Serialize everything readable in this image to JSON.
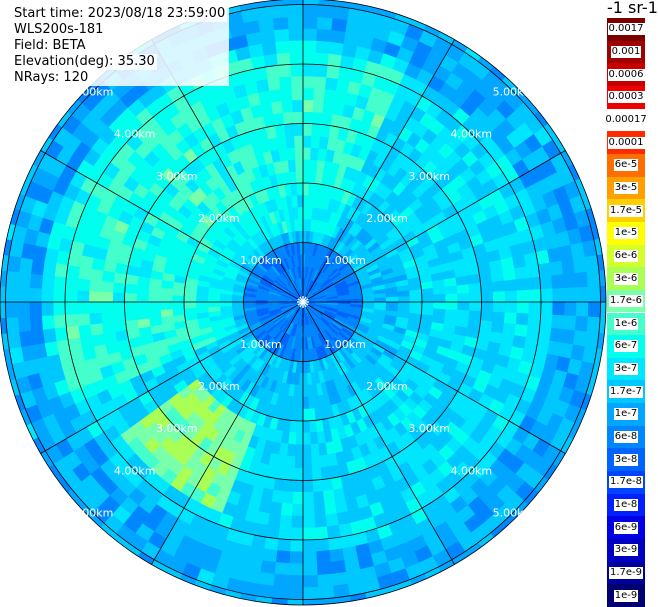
{
  "header": {
    "start_time": "Start time: 2023/08/18 23:59:00",
    "instrument": "WLS200s-181",
    "field": "Field: BETA",
    "elevation": "Elevation(deg): 35.30",
    "nrays": "NRays: 120"
  },
  "colorbar": {
    "unit_title": "-1 sr-1",
    "labels": [
      "0.0017",
      "0.001",
      "0.0006",
      "0.0003",
      "0.00017",
      "0.0001",
      "6e-5",
      "3e-5",
      "1.7e-5",
      "1e-5",
      "6e-6",
      "3e-6",
      "1.7e-6",
      "1e-6",
      "6e-7",
      "3e-7",
      "1.7e-7",
      "1e-7",
      "6e-8",
      "3e-8",
      "1.7e-8",
      "1e-8",
      "6e-9",
      "3e-9",
      "1.7e-9",
      "1e-9"
    ],
    "colors": [
      "#7a0000",
      "#a00000",
      "#c80000",
      "#ee0000",
      "#ffffff",
      "#ff2a00",
      "#ff6e00",
      "#ffa000",
      "#ffd000",
      "#ffff00",
      "#d4ff2a",
      "#aaff55",
      "#7affaa",
      "#44ffcc",
      "#00ffee",
      "#00e6ff",
      "#00c8ff",
      "#00a6ff",
      "#0086ff",
      "#0064ff",
      "#0044ff",
      "#0020ff",
      "#0000e6",
      "#0000c0",
      "#00009a",
      "#000070"
    ]
  },
  "chart_data": {
    "type": "heatmap",
    "projection": "polar PPI",
    "range_rings_km": [
      1,
      2,
      3,
      4,
      5
    ],
    "ring_labels": [
      "1.00km",
      "2.00km",
      "3.00km",
      "4.00km",
      "5.00km"
    ],
    "spoke_count": 12,
    "n_rays": 120,
    "max_range_km": 6.4,
    "colormap_levels": 26,
    "dominant_colors": [
      "#00a6ff",
      "#00c8ff",
      "#00e6ff",
      "#0086ff"
    ],
    "highlight_region_color": "#aaff55"
  }
}
